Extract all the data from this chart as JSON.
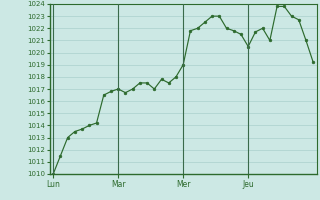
{
  "y_values": [
    1010,
    1011.5,
    1013,
    1013.5,
    1013.7,
    1014,
    1014.2,
    1016.5,
    1016.8,
    1017,
    1016.7,
    1017,
    1017.5,
    1017.5,
    1017,
    1017.8,
    1017.5,
    1018,
    1019,
    1021.8,
    1022,
    1022.5,
    1023,
    1023,
    1022,
    1021.8,
    1021.5,
    1020.5,
    1021.7,
    1022,
    1021,
    1023.8,
    1023.8,
    1023,
    1022.7,
    1021,
    1019.2
  ],
  "day_ticks": [
    0,
    9,
    18,
    27
  ],
  "day_labels": [
    "Lun",
    "Mar",
    "Mer",
    "Jeu"
  ],
  "ylim": [
    1010,
    1024
  ],
  "yticks": [
    1010,
    1011,
    1012,
    1013,
    1014,
    1015,
    1016,
    1017,
    1018,
    1019,
    1020,
    1021,
    1022,
    1023,
    1024
  ],
  "line_color": "#2d6a2d",
  "marker_color": "#2d6a2d",
  "bg_color": "#cce8e4",
  "grid_color": "#aad0cc",
  "axis_color": "#2d6a2d",
  "tick_label_color": "#2d6a2d",
  "day_line_color": "#3a6a4a",
  "fig_bg": "#cce8e4"
}
